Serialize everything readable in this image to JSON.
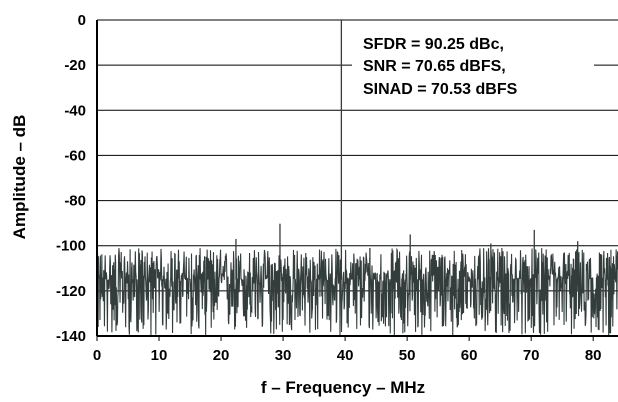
{
  "chart_data": {
    "type": "line",
    "title": "",
    "xlabel": "f – Frequency – MHz",
    "ylabel": "Amplitude – dB",
    "xlim": [
      0,
      84
    ],
    "ylim": [
      -140,
      0
    ],
    "x_ticks": [
      0,
      10,
      20,
      30,
      40,
      50,
      60,
      70,
      80
    ],
    "y_ticks": [
      0,
      -20,
      -40,
      -60,
      -80,
      -100,
      -120,
      -140
    ],
    "x_tick_labels": [
      "0",
      "10",
      "20",
      "30",
      "40",
      "50",
      "60",
      "70",
      "80"
    ],
    "y_tick_labels": [
      "0",
      "-20",
      "-40",
      "-60",
      "-80",
      "-100",
      "-120",
      "-140"
    ],
    "grid": {
      "horizontal": true,
      "vertical": false
    },
    "line_color": "#333d3c",
    "annotations": [
      "SFDR = 90.25 dBc,",
      "SNR = 70.65 dBFS,",
      "SINAD = 70.53 dBFS"
    ],
    "series": [
      {
        "noise_floor_db": -115,
        "noise_band_db": [
          -140,
          -101
        ],
        "spurs": [
          {
            "freq_mhz": 39.4,
            "amplitude_db": 0
          },
          {
            "freq_mhz": 29.5,
            "amplitude_db": -90.25
          },
          {
            "freq_mhz": 22.4,
            "amplitude_db": -97
          },
          {
            "freq_mhz": 50.5,
            "amplitude_db": -95
          },
          {
            "freq_mhz": 70.5,
            "amplitude_db": -93
          },
          {
            "freq_mhz": 77.5,
            "amplitude_db": -98
          },
          {
            "freq_mhz": 63.5,
            "amplitude_db": -99
          },
          {
            "freq_mhz": 44.0,
            "amplitude_db": -101
          }
        ]
      }
    ]
  }
}
